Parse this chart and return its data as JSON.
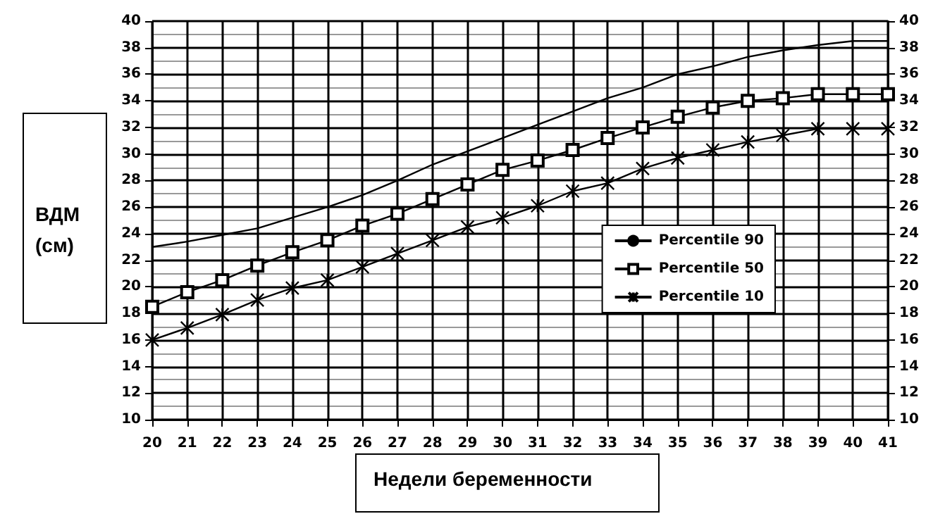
{
  "chart_data": {
    "type": "line",
    "xlabel": "Недели беременности",
    "ylabel": "ВДМ (см)",
    "categories": [
      "20",
      "21",
      "22",
      "23",
      "24",
      "25",
      "26",
      "27",
      "28",
      "29",
      "30",
      "31",
      "32",
      "33",
      "34",
      "35",
      "36",
      "37",
      "38",
      "39",
      "40",
      "41"
    ],
    "series": [
      {
        "name": "Percentile 90",
        "color": "#000000",
        "marker": "none",
        "values": [
          23,
          23.4,
          23.9,
          24.4,
          25.2,
          26,
          26.9,
          28,
          29.2,
          30.2,
          31.2,
          32.2,
          33.2,
          34.2,
          35,
          36,
          36.6,
          37.3,
          37.8,
          38.2,
          38.5,
          38.5
        ]
      },
      {
        "name": "Percentile 50",
        "color": "#000000",
        "marker": "square",
        "values": [
          18.5,
          19.6,
          20.5,
          21.6,
          22.6,
          23.5,
          24.6,
          25.5,
          26.6,
          27.7,
          28.8,
          29.5,
          30.3,
          31.2,
          32,
          32.8,
          33.5,
          34,
          34.2,
          34.5,
          34.5,
          34.5
        ]
      },
      {
        "name": "Percentile 10",
        "color": "#000000",
        "marker": "cross",
        "values": [
          16,
          16.9,
          17.9,
          19,
          19.9,
          20.5,
          21.5,
          22.5,
          23.5,
          24.5,
          25.2,
          26.1,
          27.2,
          27.8,
          28.9,
          29.7,
          30.3,
          30.9,
          31.4,
          31.9,
          31.9,
          31.9
        ]
      }
    ],
    "ylim": [
      10,
      40
    ],
    "yticks": [
      10,
      12,
      14,
      16,
      18,
      20,
      22,
      24,
      26,
      28,
      30,
      32,
      34,
      36,
      38,
      40
    ],
    "y2lim": [
      10,
      40
    ],
    "y2ticks": [
      10,
      12,
      14,
      16,
      18,
      20,
      22,
      24,
      26,
      28,
      30,
      32,
      34,
      36,
      38,
      40
    ],
    "grid": true,
    "legend": "right"
  }
}
